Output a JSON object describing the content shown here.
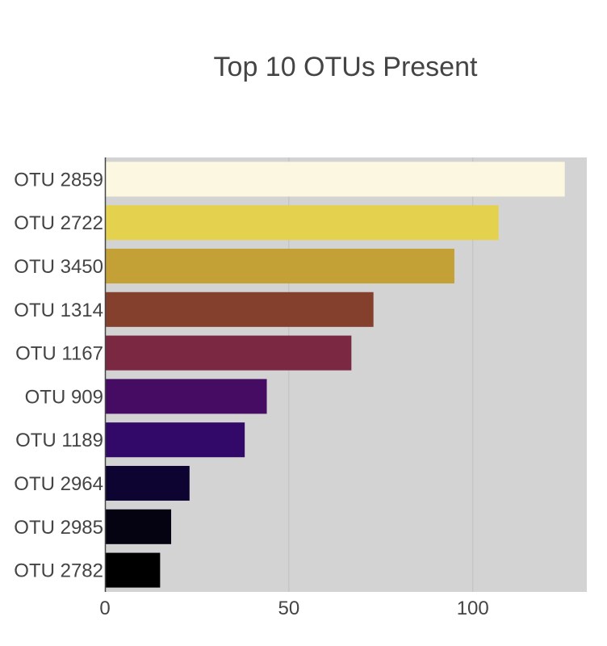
{
  "chart_data": {
    "type": "bar",
    "orientation": "horizontal",
    "title": "Top 10 OTUs Present",
    "xlabel": "",
    "ylabel": "",
    "categories": [
      "OTU 2859",
      "OTU 2722",
      "OTU 3450",
      "OTU 1314",
      "OTU 1167",
      "OTU 909",
      "OTU 1189",
      "OTU 2964",
      "OTU 2985",
      "OTU 2782"
    ],
    "values": [
      125,
      107,
      95,
      73,
      67,
      44,
      38,
      23,
      18,
      15
    ],
    "colors": [
      "#fcf7e1",
      "#e4d24e",
      "#c4a137",
      "#853f2d",
      "#7b2942",
      "#460b62",
      "#320968",
      "#0e0432",
      "#050312",
      "#000000"
    ],
    "xlim": [
      0,
      131
    ],
    "xticks": [
      0,
      50,
      100
    ],
    "xtick_labels": [
      "0",
      "50",
      "100"
    ],
    "grid": "vertical",
    "plot_background": "#d3d3d3",
    "legend": "none"
  }
}
